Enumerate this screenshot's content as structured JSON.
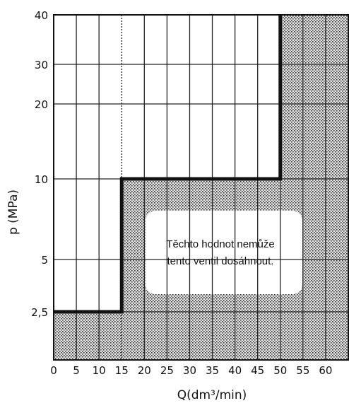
{
  "chart_data": {
    "type": "area",
    "title": "",
    "xlabel": "Q(dm³/min)",
    "ylabel": "p (MPa)",
    "x_ticks": [
      0,
      5,
      10,
      15,
      20,
      25,
      30,
      35,
      40,
      45,
      50,
      55,
      60
    ],
    "y_ticks": [
      "2,5",
      "5",
      "10",
      "20",
      "30",
      "40"
    ],
    "y_tick_values": [
      2.5,
      5,
      10,
      20,
      30,
      40
    ],
    "xlim": [
      0,
      65
    ],
    "ylim_display": [
      2.5,
      40
    ],
    "y_scale": "log",
    "grid": true,
    "boundary": {
      "x": [
        0,
        15,
        15,
        50,
        50
      ],
      "y": [
        2.5,
        2.5,
        10,
        10,
        40
      ]
    },
    "shaded_region_color": "#bdbdbd",
    "annotation": [
      "Těchto hodnot nemůže",
      "tento ventil dosáhnout."
    ]
  }
}
